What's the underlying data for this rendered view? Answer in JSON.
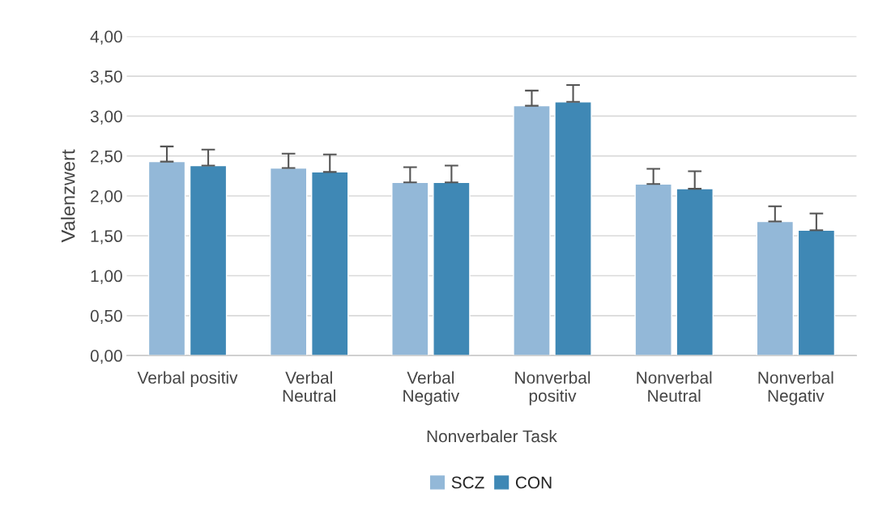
{
  "chart_data": {
    "type": "bar",
    "categories": [
      "Verbal positiv",
      "Verbal\nNeutral",
      "Verbal\nNegativ",
      "Nonverbal\npositiv",
      "Nonverbal\nNeutral",
      "Nonverbal\nNegativ"
    ],
    "series": [
      {
        "name": "SCZ",
        "color": "#93b8d8",
        "values": [
          2.43,
          2.35,
          2.17,
          3.13,
          2.15,
          1.68
        ],
        "errors": [
          [
            2.43,
            2.62
          ],
          [
            2.35,
            2.53
          ],
          [
            2.17,
            2.36
          ],
          [
            3.13,
            3.32
          ],
          [
            2.15,
            2.34
          ],
          [
            1.68,
            1.87
          ]
        ]
      },
      {
        "name": "CON",
        "color": "#3f88b5",
        "values": [
          2.38,
          2.3,
          2.17,
          3.18,
          2.09,
          1.57
        ],
        "errors": [
          [
            2.38,
            2.58
          ],
          [
            2.3,
            2.52
          ],
          [
            2.17,
            2.38
          ],
          [
            3.18,
            3.39
          ],
          [
            2.09,
            2.31
          ],
          [
            1.57,
            1.78
          ]
        ]
      }
    ],
    "xlabel": "Nonverbaler Task",
    "ylabel": "Valenzwert",
    "ylim": [
      0,
      4
    ],
    "yticks": [
      {
        "value": 0,
        "label": "0,00"
      },
      {
        "value": 0.5,
        "label": "0,50"
      },
      {
        "value": 1,
        "label": "1,00"
      },
      {
        "value": 1.5,
        "label": "1,50"
      },
      {
        "value": 2,
        "label": "2,00"
      },
      {
        "value": 2.5,
        "label": "2,50"
      },
      {
        "value": 3,
        "label": "3,00"
      },
      {
        "value": 3.5,
        "label": "3,50"
      },
      {
        "value": 4,
        "label": "4,00"
      }
    ],
    "grid": "y",
    "legend": "bottom"
  }
}
